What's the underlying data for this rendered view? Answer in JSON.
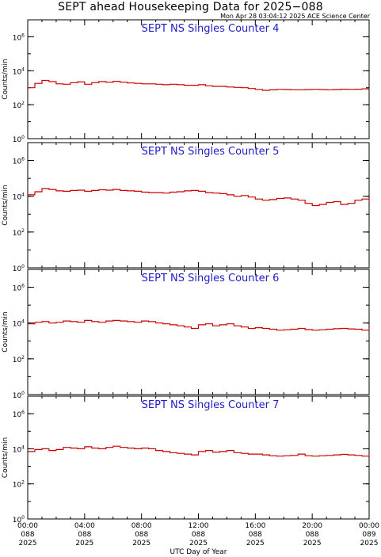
{
  "header": {
    "title": "SEPT ahead Housekeeping Data for 2025−088",
    "timestamp": "Mon Apr 28 03:04:12 2025 ACE Science Center"
  },
  "colors": {
    "title": "#1e1ec8",
    "series": "#cc0000",
    "axes": "#000000"
  },
  "chart_data": [
    {
      "type": "line",
      "title": "SEPT NS Singles Counter 4",
      "ylabel": "Counts/min",
      "yscale": "log",
      "ylim": [
        1,
        10000000
      ],
      "yticks": [
        1,
        100,
        10000,
        1000000
      ],
      "ytick_labels": [
        {
          "base": "10",
          "exp": "0"
        },
        {
          "base": "10",
          "exp": "2"
        },
        {
          "base": "10",
          "exp": "4"
        },
        {
          "base": "10",
          "exp": "6"
        }
      ],
      "x_hours": [
        0,
        0.5,
        1,
        1.5,
        2,
        2.5,
        3,
        3.5,
        4,
        4.5,
        5,
        5.5,
        6,
        6.5,
        7,
        7.5,
        8,
        8.5,
        9,
        9.5,
        10,
        10.5,
        11,
        11.5,
        12,
        12.5,
        13,
        13.5,
        14,
        14.5,
        15,
        15.5,
        16,
        16.5,
        17,
        17.5,
        18,
        18.5,
        19,
        19.5,
        20,
        20.5,
        21,
        21.5,
        22,
        22.5,
        23,
        23.5,
        24
      ],
      "values": [
        1000,
        1800,
        2700,
        2300,
        1700,
        1600,
        2000,
        2200,
        1600,
        2000,
        2300,
        2100,
        2400,
        2100,
        1900,
        1800,
        1700,
        1700,
        1600,
        1500,
        1600,
        1500,
        1400,
        1400,
        1500,
        1300,
        1200,
        1200,
        1100,
        1050,
        1000,
        900,
        800,
        700,
        750,
        800,
        780,
        760,
        760,
        780,
        800,
        780,
        760,
        780,
        820,
        800,
        820,
        860,
        850
      ]
    },
    {
      "type": "line",
      "title": "SEPT NS Singles Counter 5",
      "ylabel": "Counts/min",
      "yscale": "log",
      "ylim": [
        1,
        10000000
      ],
      "yticks": [
        1,
        100,
        10000,
        1000000
      ],
      "ytick_labels": [
        {
          "base": "10",
          "exp": "0"
        },
        {
          "base": "10",
          "exp": "2"
        },
        {
          "base": "10",
          "exp": "4"
        },
        {
          "base": "10",
          "exp": "6"
        }
      ],
      "x_hours": [
        0,
        0.5,
        1,
        1.5,
        2,
        2.5,
        3,
        3.5,
        4,
        4.5,
        5,
        5.5,
        6,
        6.5,
        7,
        7.5,
        8,
        8.5,
        9,
        9.5,
        10,
        10.5,
        11,
        11.5,
        12,
        12.5,
        13,
        13.5,
        14,
        14.5,
        15,
        15.5,
        16,
        16.5,
        17,
        17.5,
        18,
        18.5,
        19,
        19.5,
        20,
        20.5,
        21,
        21.5,
        22,
        22.5,
        23,
        23.5,
        24
      ],
      "values": [
        12000,
        18000,
        27000,
        24000,
        20000,
        19000,
        21000,
        22000,
        19000,
        21000,
        23000,
        22000,
        24000,
        21000,
        20000,
        19000,
        17000,
        16000,
        16000,
        15000,
        17000,
        18000,
        20000,
        21000,
        19000,
        16000,
        15000,
        14000,
        12000,
        10000,
        11000,
        9000,
        7000,
        6000,
        6500,
        7500,
        8000,
        7000,
        6000,
        4000,
        3000,
        3500,
        4500,
        5000,
        3500,
        4000,
        6000,
        7000,
        5000
      ]
    },
    {
      "type": "line",
      "title": "SEPT NS Singles Counter 6",
      "ylabel": "Counts/min",
      "yscale": "log",
      "ylim": [
        1,
        10000000
      ],
      "yticks": [
        1,
        100,
        10000,
        1000000
      ],
      "ytick_labels": [
        {
          "base": "10",
          "exp": "0"
        },
        {
          "base": "10",
          "exp": "2"
        },
        {
          "base": "10",
          "exp": "4"
        },
        {
          "base": "10",
          "exp": "6"
        }
      ],
      "x_hours": [
        0,
        0.5,
        1,
        1.5,
        2,
        2.5,
        3,
        3.5,
        4,
        4.5,
        5,
        5.5,
        6,
        6.5,
        7,
        7.5,
        8,
        8.5,
        9,
        9.5,
        10,
        10.5,
        11,
        11.5,
        12,
        12.5,
        13,
        13.5,
        14,
        14.5,
        15,
        15.5,
        16,
        16.5,
        17,
        17.5,
        18,
        18.5,
        19,
        19.5,
        20,
        20.5,
        21,
        21.5,
        22,
        22.5,
        23,
        23.5,
        24
      ],
      "values": [
        9000,
        11000,
        12000,
        10000,
        11000,
        13000,
        12000,
        11000,
        14000,
        12000,
        11000,
        13000,
        14000,
        13000,
        12000,
        11000,
        13000,
        12000,
        10000,
        9000,
        8000,
        7000,
        6000,
        5000,
        8000,
        9000,
        7000,
        8000,
        9000,
        7000,
        6000,
        5000,
        5500,
        5000,
        4500,
        4000,
        4200,
        4500,
        5000,
        4300,
        4000,
        4200,
        4500,
        4800,
        5000,
        4700,
        4500,
        4000,
        5000
      ]
    },
    {
      "type": "line",
      "title": "SEPT NS Singles Counter 7",
      "ylabel": "Counts/min",
      "yscale": "log",
      "ylim": [
        1,
        10000000
      ],
      "yticks": [
        1,
        100,
        10000,
        1000000
      ],
      "ytick_labels": [
        {
          "base": "10",
          "exp": "0"
        },
        {
          "base": "10",
          "exp": "2"
        },
        {
          "base": "10",
          "exp": "4"
        },
        {
          "base": "10",
          "exp": "6"
        }
      ],
      "x_hours": [
        0,
        0.5,
        1,
        1.5,
        2,
        2.5,
        3,
        3.5,
        4,
        4.5,
        5,
        5.5,
        6,
        6.5,
        7,
        7.5,
        8,
        8.5,
        9,
        9.5,
        10,
        10.5,
        11,
        11.5,
        12,
        12.5,
        13,
        13.5,
        14,
        14.5,
        15,
        15.5,
        16,
        16.5,
        17,
        17.5,
        18,
        18.5,
        19,
        19.5,
        20,
        20.5,
        21,
        21.5,
        22,
        22.5,
        23,
        23.5,
        24
      ],
      "values": [
        7000,
        9000,
        10000,
        8000,
        9000,
        12000,
        11000,
        10000,
        13000,
        11000,
        10000,
        12000,
        14000,
        12000,
        11000,
        10000,
        11000,
        10000,
        8000,
        7000,
        6000,
        5500,
        5000,
        4500,
        7000,
        8000,
        6500,
        7000,
        8000,
        6000,
        5500,
        5000,
        5000,
        4500,
        4000,
        3800,
        4000,
        4200,
        5000,
        4000,
        3800,
        4000,
        4200,
        4500,
        4800,
        4500,
        4200,
        3800,
        4500
      ]
    }
  ],
  "x_axis": {
    "label": "UTC Day of Year",
    "ticks": [
      {
        "hour": 0,
        "time": "00:00",
        "doy": "088",
        "year": "2025"
      },
      {
        "hour": 4,
        "time": "04:00",
        "doy": "088",
        "year": "2025"
      },
      {
        "hour": 8,
        "time": "08:00",
        "doy": "088",
        "year": "2025"
      },
      {
        "hour": 12,
        "time": "12:00",
        "doy": "088",
        "year": "2025"
      },
      {
        "hour": 16,
        "time": "16:00",
        "doy": "088",
        "year": "2025"
      },
      {
        "hour": 20,
        "time": "20:00",
        "doy": "088",
        "year": "2025"
      },
      {
        "hour": 24,
        "time": "00:00",
        "doy": "089",
        "year": "2025"
      }
    ]
  }
}
